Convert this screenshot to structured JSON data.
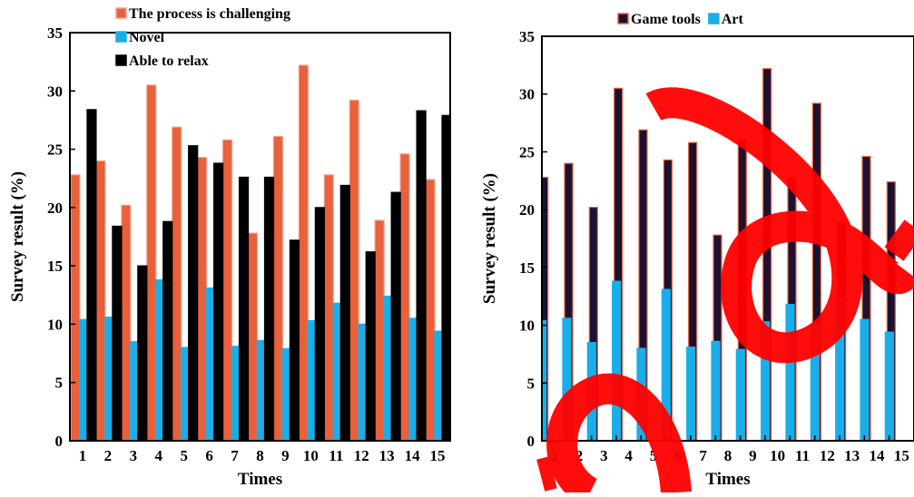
{
  "chart_data": [
    {
      "type": "bar",
      "title": "",
      "xlabel": "Times",
      "ylabel": "Survey result (%)",
      "ylim": [
        0,
        35
      ],
      "yticks": [
        0,
        5,
        10,
        15,
        20,
        25,
        30,
        35
      ],
      "grid": false,
      "legend_position": "top-center",
      "categories": [
        "1",
        "2",
        "3",
        "4",
        "5",
        "6",
        "7",
        "8",
        "9",
        "10",
        "11",
        "12",
        "13",
        "14",
        "15"
      ],
      "series": [
        {
          "name": "The process is challenging",
          "color": "#e8603c",
          "stroke": "#f2a08a",
          "values": [
            22.8,
            24.0,
            20.2,
            30.5,
            26.9,
            24.3,
            25.8,
            17.8,
            26.1,
            32.2,
            22.8,
            29.2,
            18.9,
            24.6,
            22.4
          ]
        },
        {
          "name": "Novel",
          "color": "#1aaee8",
          "stroke": "#1aaee8",
          "values": [
            10.4,
            10.6,
            8.5,
            13.8,
            8.0,
            13.1,
            8.1,
            8.6,
            7.9,
            10.3,
            11.8,
            10.0,
            12.4,
            10.5,
            9.4
          ]
        },
        {
          "name": "Able to relax",
          "color": "#000000",
          "stroke": "#000000",
          "values": [
            28.4,
            18.4,
            15.0,
            18.8,
            25.3,
            23.8,
            22.6,
            22.6,
            17.2,
            20.0,
            21.9,
            16.2,
            21.3,
            28.3,
            27.9
          ]
        }
      ]
    },
    {
      "type": "bar",
      "title": "",
      "xlabel": "Times",
      "ylabel": "Survey result (%)",
      "ylim": [
        0,
        35
      ],
      "yticks": [
        0,
        5,
        10,
        15,
        20,
        25,
        30,
        35
      ],
      "grid": false,
      "legend_position": "top-center",
      "categories": [
        "1",
        "2",
        "3",
        "4",
        "5",
        "6",
        "7",
        "8",
        "9",
        "10",
        "11",
        "12",
        "13",
        "14",
        "15"
      ],
      "series": [
        {
          "name": "Game tools",
          "color": "#1a1230",
          "stroke": "#e8603c",
          "values": [
            22.8,
            24.0,
            20.2,
            30.5,
            26.9,
            24.3,
            25.8,
            17.8,
            26.1,
            32.2,
            22.8,
            29.2,
            18.9,
            24.6,
            22.4
          ]
        },
        {
          "name": "Art",
          "color": "#1aaee8",
          "stroke": "#1aaee8",
          "values": [
            10.4,
            10.6,
            8.5,
            13.8,
            8.0,
            13.1,
            8.1,
            8.6,
            7.9,
            10.3,
            11.8,
            10.0,
            12.4,
            10.5,
            9.4
          ]
        }
      ]
    }
  ],
  "colors": {
    "watermark": "#ff0000"
  }
}
